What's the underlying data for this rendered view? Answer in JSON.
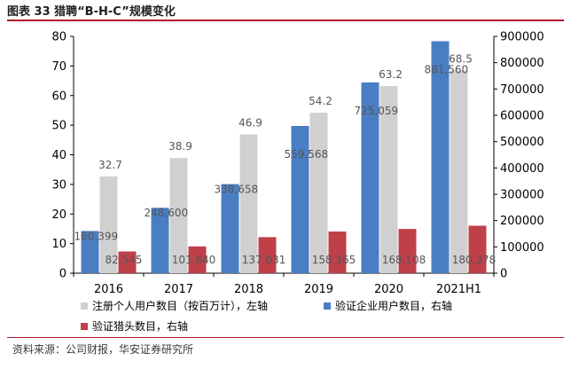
{
  "figure": {
    "title": "图表 33 猎聘“B-H-C”规模变化",
    "source": "资料来源：公司财报，华安证券研究所"
  },
  "colors": {
    "gray": "#d0d0d0",
    "blue": "#4a7ec3",
    "red": "#c0404a",
    "rule": "#b01c2e"
  },
  "chart_data": {
    "type": "bar",
    "title": "",
    "categories": [
      "2016",
      "2017",
      "2018",
      "2019",
      "2020",
      "2021H1"
    ],
    "y_left": {
      "lim": [
        0,
        80
      ],
      "ticks": [
        0,
        10,
        20,
        30,
        40,
        50,
        60,
        70,
        80
      ]
    },
    "y_right": {
      "lim": [
        0,
        900000
      ],
      "ticks": [
        0,
        100000,
        200000,
        300000,
        400000,
        500000,
        600000,
        700000,
        800000,
        900000
      ]
    },
    "series": [
      {
        "name": "注册个人用户数目（按百万计），左轴",
        "axis": "left",
        "values": [
          32.7,
          38.9,
          46.9,
          54.2,
          63.2,
          68.5
        ],
        "labels": [
          "32.7",
          "38.9",
          "46.9",
          "54.2",
          "63.2",
          "68.5"
        ]
      },
      {
        "name": "验证企业用户数目，右轴",
        "axis": "right",
        "values": [
          160399,
          248600,
          338658,
          559568,
          725059,
          881560
        ],
        "labels": [
          "160,399",
          "248,600",
          "338,658",
          "559,568",
          "725,059",
          "881,560"
        ]
      },
      {
        "name": "验证猎头数目，右轴",
        "axis": "right",
        "values": [
          82545,
          101840,
          137031,
          158365,
          168108,
          180378
        ],
        "labels": [
          "82,545",
          "101,840",
          "137,031",
          "158,365",
          "168,108",
          "180,378"
        ]
      }
    ],
    "legend": "bottom",
    "grid": false
  }
}
